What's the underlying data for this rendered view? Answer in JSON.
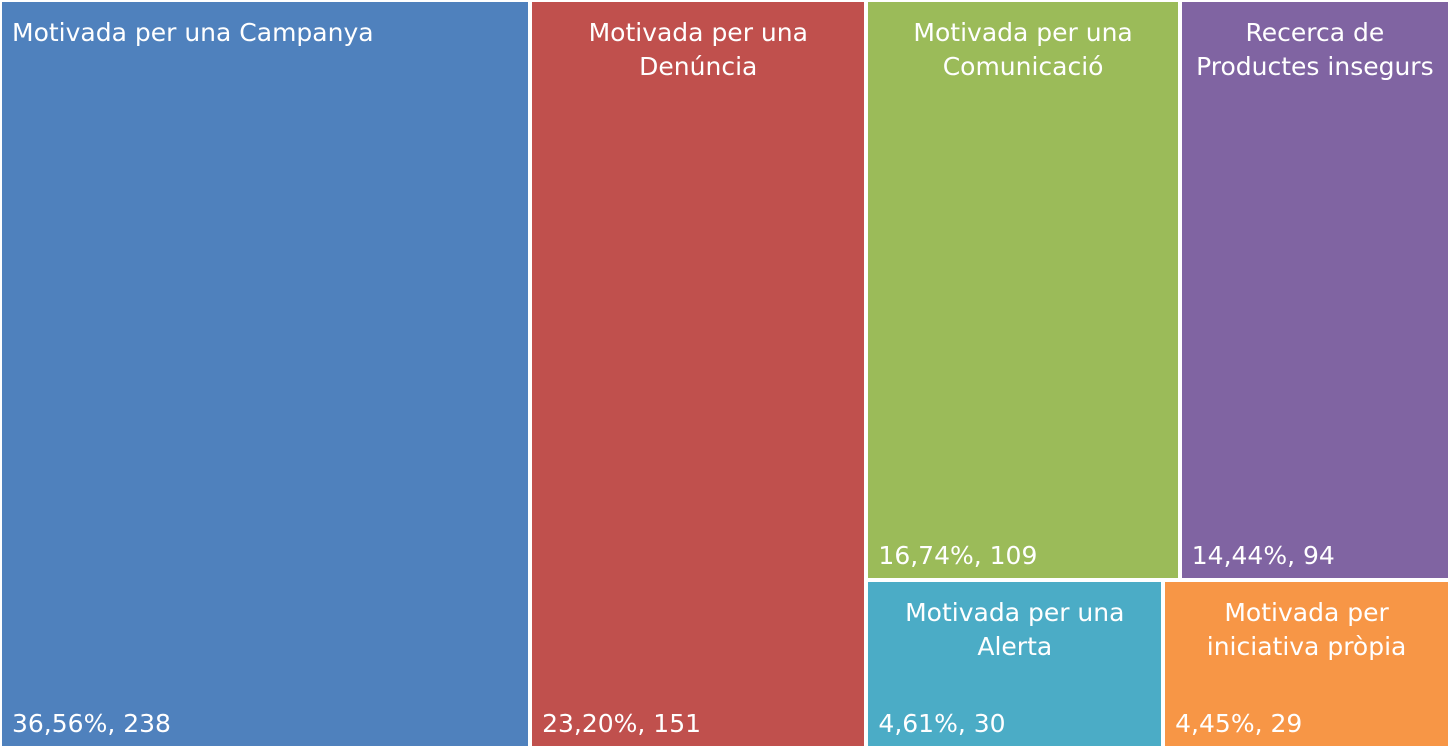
{
  "chart_data": {
    "type": "treemap",
    "categories": [
      "Motivada per una Campanya",
      "Motivada per una Denúncia",
      "Motivada per una Comunicació",
      "Recerca de Productes insegurs",
      "Motivada per una Alerta",
      "Motivada per iniciativa pròpia"
    ],
    "values": [
      238,
      151,
      109,
      94,
      30,
      29
    ],
    "value_labels": [
      "36,56%, 238",
      "23,20%, 151",
      "16,74%, 109",
      "14,44%, 94",
      "4,61%, 30",
      "4,45%, 29"
    ],
    "colors": [
      "#4f81bd",
      "#c0504d",
      "#9bbb59",
      "#8064a2",
      "#4bacc6",
      "#f79646"
    ]
  }
}
